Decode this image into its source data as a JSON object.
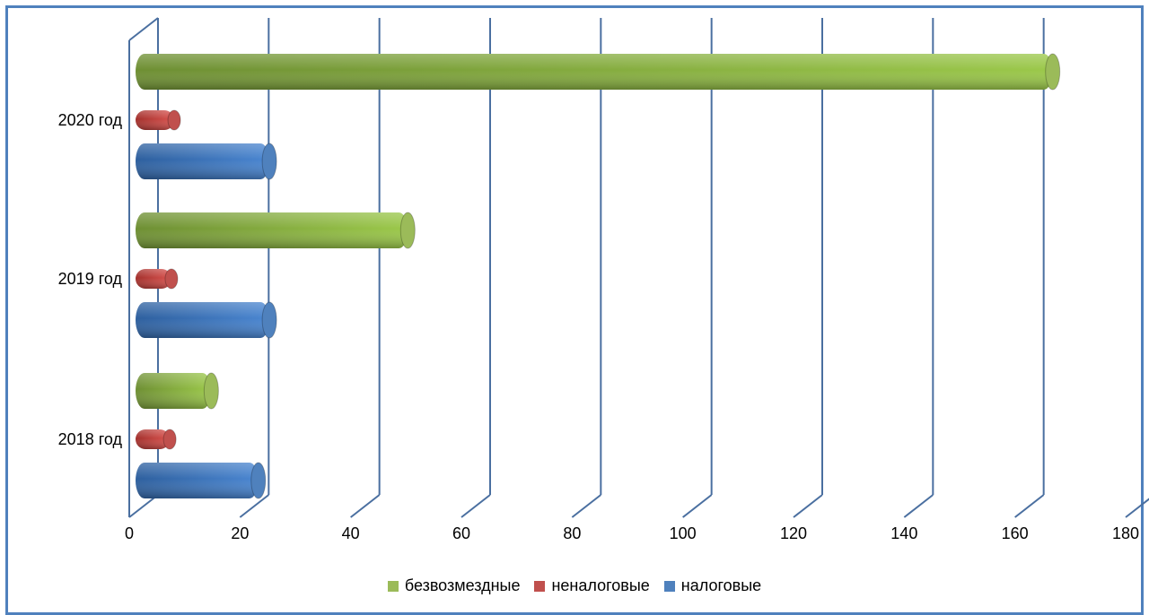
{
  "chart_data": {
    "type": "bar",
    "orientation": "horizontal",
    "categories": [
      "2018 год",
      "2019 год",
      "2020 год"
    ],
    "series": [
      {
        "name": "безвозмездные",
        "color": "#9bbb59",
        "values": [
          13,
          48.5,
          165
        ]
      },
      {
        "name": "неналоговые",
        "color": "#c0504d",
        "values": [
          5.5,
          5.8,
          6.3
        ]
      },
      {
        "name": "налоговые",
        "color": "#4f81bd",
        "values": [
          21.5,
          23.5,
          23.5
        ]
      }
    ],
    "xlim": [
      0,
      180
    ],
    "xticks": [
      "0",
      "20",
      "40",
      "60",
      "80",
      "100",
      "120",
      "140",
      "160",
      "180"
    ],
    "grid": true,
    "legend_position": "bottom"
  }
}
